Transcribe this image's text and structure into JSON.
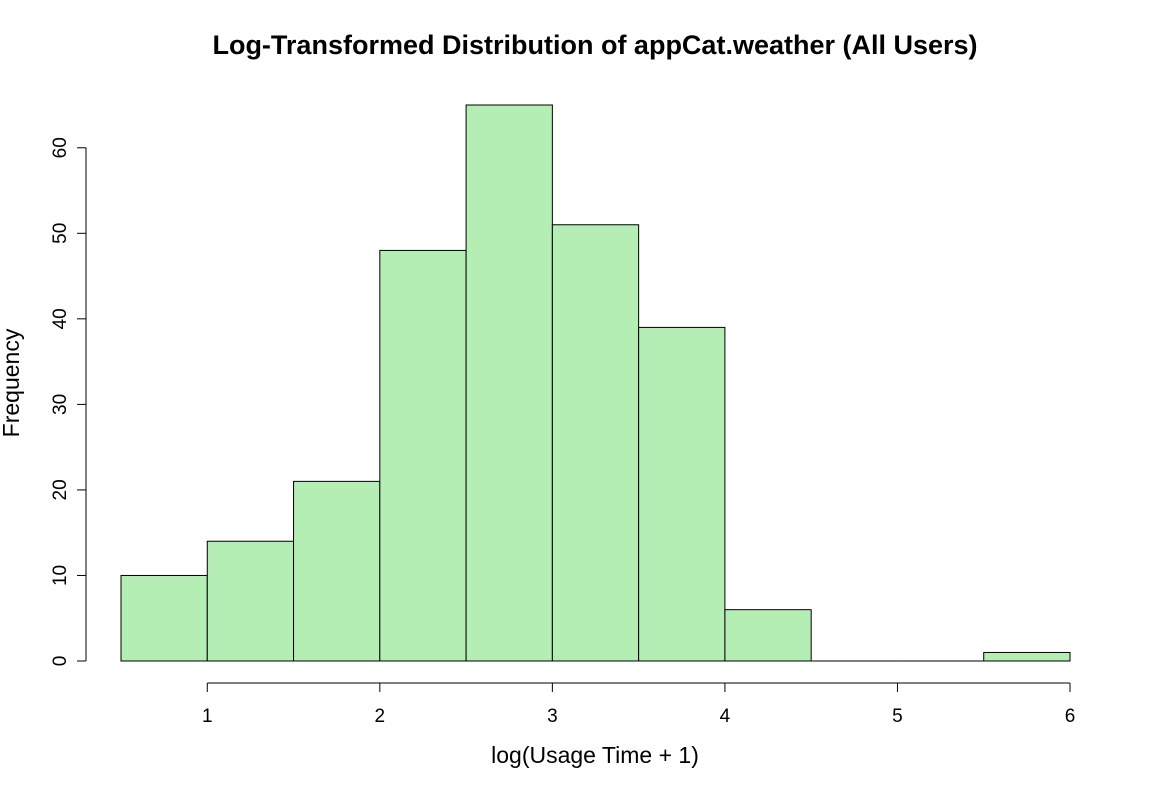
{
  "chart_data": {
    "type": "bar",
    "title": "Log-Transformed Distribution of appCat.weather (All Users)",
    "xlabel": "log(Usage Time + 1)",
    "ylabel": "Frequency",
    "bins": [
      {
        "x0": 0.5,
        "x1": 1.0,
        "count": 10
      },
      {
        "x0": 1.0,
        "x1": 1.5,
        "count": 14
      },
      {
        "x0": 1.5,
        "x1": 2.0,
        "count": 21
      },
      {
        "x0": 2.0,
        "x1": 2.5,
        "count": 48
      },
      {
        "x0": 2.5,
        "x1": 3.0,
        "count": 65
      },
      {
        "x0": 3.0,
        "x1": 3.5,
        "count": 51
      },
      {
        "x0": 3.5,
        "x1": 4.0,
        "count": 39
      },
      {
        "x0": 4.0,
        "x1": 4.5,
        "count": 6
      },
      {
        "x0": 4.5,
        "x1": 5.0,
        "count": 0
      },
      {
        "x0": 5.0,
        "x1": 5.5,
        "count": 0
      },
      {
        "x0": 5.5,
        "x1": 6.0,
        "count": 1
      }
    ],
    "xlim": [
      0.5,
      6.0
    ],
    "ylim": [
      0,
      65
    ],
    "x_ticks": [
      "1",
      "2",
      "3",
      "4",
      "5",
      "6"
    ],
    "y_ticks": [
      "0",
      "10",
      "20",
      "30",
      "40",
      "50",
      "60"
    ],
    "bar_color": "#b5eeb5",
    "grid": false
  }
}
